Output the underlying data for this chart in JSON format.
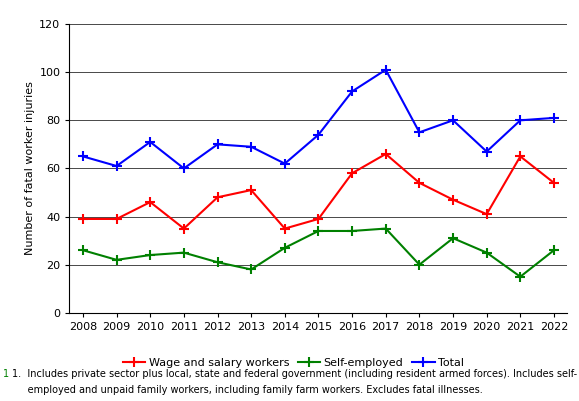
{
  "years": [
    2008,
    2009,
    2010,
    2011,
    2012,
    2013,
    2014,
    2015,
    2016,
    2017,
    2018,
    2019,
    2020,
    2021,
    2022
  ],
  "wage_salary": [
    39,
    39,
    46,
    35,
    48,
    51,
    35,
    39,
    58,
    66,
    54,
    47,
    41,
    65,
    54
  ],
  "self_employed": [
    26,
    22,
    24,
    25,
    21,
    18,
    27,
    34,
    34,
    35,
    20,
    31,
    25,
    15,
    26
  ],
  "total": [
    65,
    61,
    71,
    60,
    70,
    69,
    62,
    74,
    92,
    101,
    75,
    80,
    67,
    80,
    81
  ],
  "wage_color": "#FF0000",
  "self_color": "#008000",
  "total_color": "#0000FF",
  "ylabel": "Number of fatal worker injuries",
  "ylim": [
    0,
    120
  ],
  "yticks": [
    0,
    20,
    40,
    60,
    80,
    100,
    120
  ],
  "legend_wage": "Wage and salary workers",
  "legend_self": "Self-employed",
  "legend_total": "Total",
  "footnote_line1": "1.  Includes private sector plus local, state and federal government (including resident armed forces). Includes self-",
  "footnote_line2": "     employed and unpaid family workers, including family farm workers. Excludes fatal illnesses.",
  "footnote_color": "#000000",
  "footnote_marker": "1",
  "footnote_marker_color": "#008000",
  "bg_color": "#FFFFFF"
}
